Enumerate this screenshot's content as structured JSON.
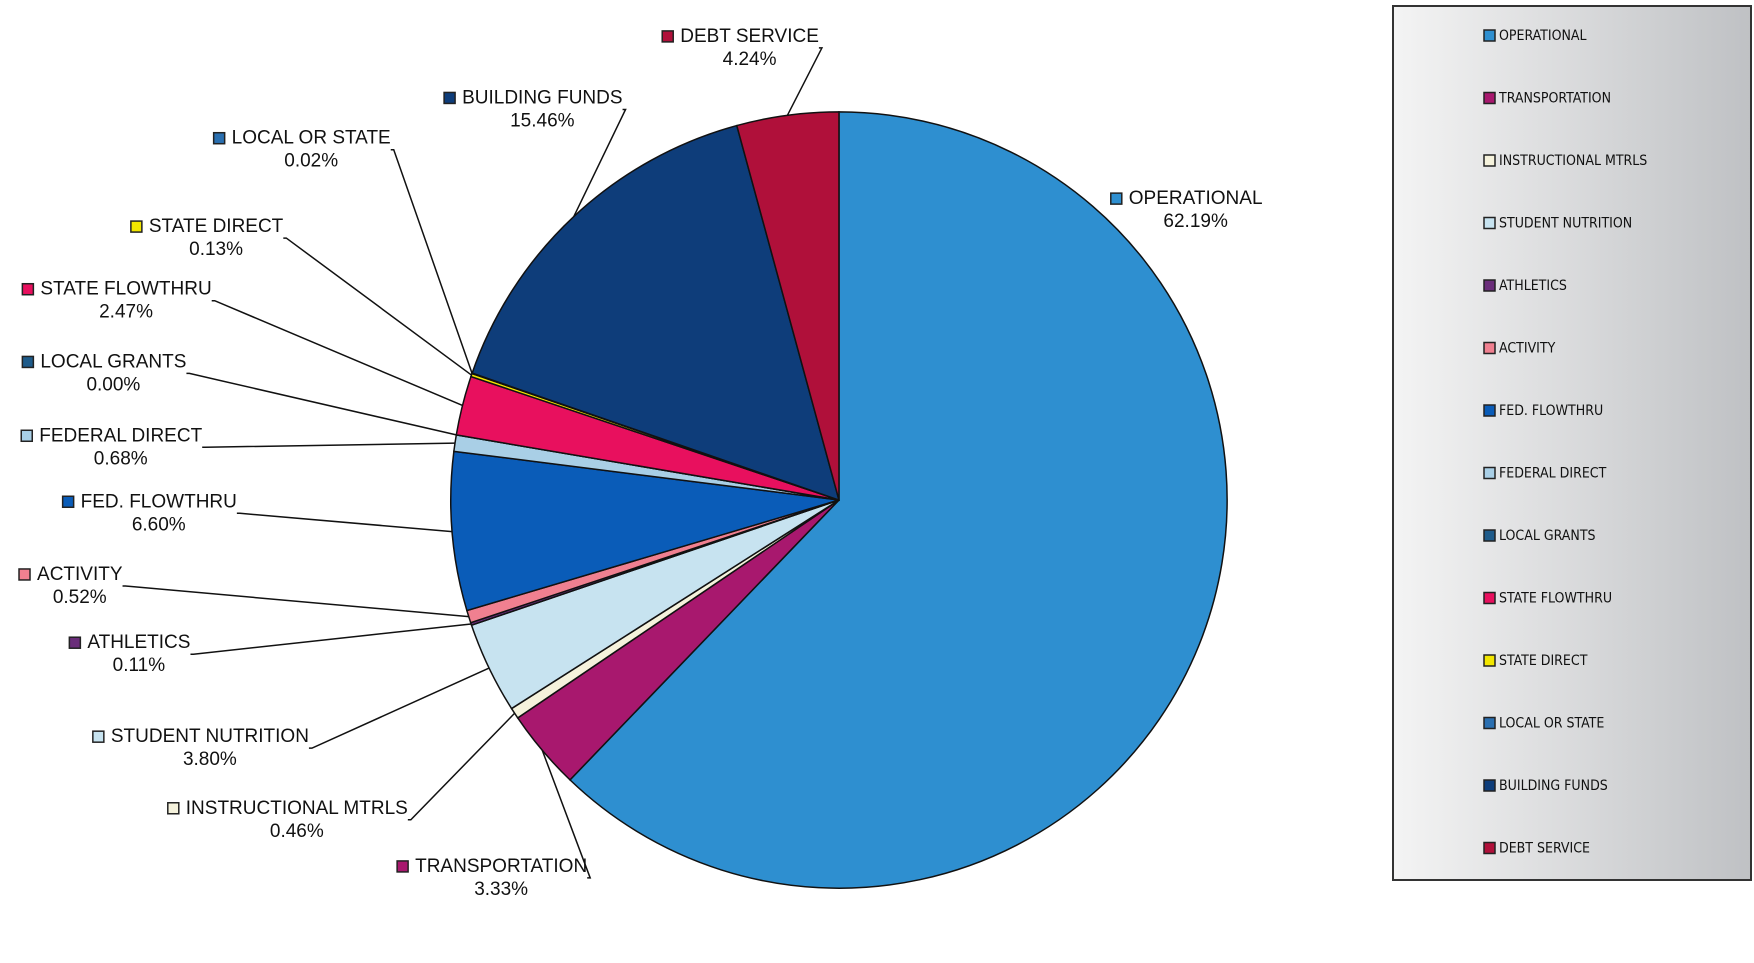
{
  "chart_data": {
    "type": "pie",
    "categories": [
      "OPERATIONAL",
      "TRANSPORTATION",
      "INSTRUCTIONAL MTRLS",
      "STUDENT NUTRITION",
      "ATHLETICS",
      "ACTIVITY",
      "FED. FLOWTHRU",
      "FEDERAL DIRECT",
      "LOCAL GRANTS",
      "STATE FLOWTHRU",
      "STATE DIRECT",
      "LOCAL OR STATE",
      "BUILDING FUNDS",
      "DEBT SERVICE"
    ],
    "values": [
      62.19,
      3.33,
      0.46,
      3.8,
      0.11,
      0.52,
      6.6,
      0.68,
      0.0,
      2.47,
      0.13,
      0.02,
      15.46,
      4.24
    ],
    "value_labels": [
      "62.19%",
      "3.33%",
      "0.46%",
      "3.80%",
      "0.11%",
      "0.52%",
      "6.60%",
      "0.68%",
      "0.00%",
      "2.47%",
      "0.13%",
      "0.02%",
      "15.46%",
      "4.24%"
    ],
    "colors": [
      "#2e8fd0",
      "#a8186e",
      "#f5f2dc",
      "#c7e3f0",
      "#6a2d7a",
      "#f08090",
      "#0a5cb8",
      "#a9cfe6",
      "#1e5b8a",
      "#e8105e",
      "#f2e600",
      "#2a6fb0",
      "#0e3d7a",
      "#b0103a"
    ],
    "legend": "right"
  }
}
